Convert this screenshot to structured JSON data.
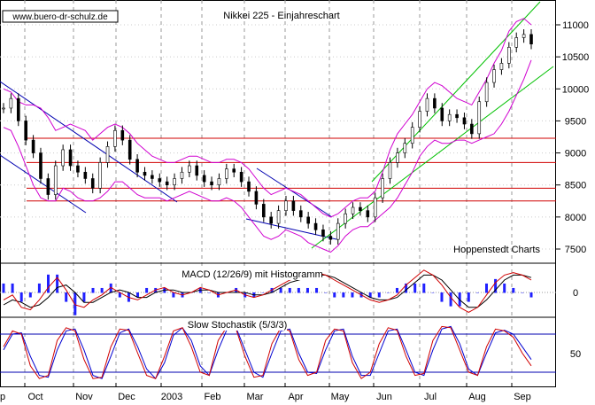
{
  "header": {
    "source": "www.buero-dr-schulz.de",
    "title": "Nikkei 225 - Einjahreschart"
  },
  "chart_data": [
    {
      "type": "candlestick",
      "title": "Nikkei 225 - Einjahreschart",
      "attribution": "Hoppenstedt Charts",
      "ylim": [
        7300,
        11500
      ],
      "yticks": [
        7500,
        8000,
        8500,
        9000,
        9500,
        10000,
        10500,
        11000
      ],
      "xticks": [
        "p",
        "Oct",
        "Nov",
        "Dec",
        "2003",
        "Feb",
        "Mar",
        "Apr",
        "May",
        "Jun",
        "Jul",
        "Aug",
        "Sep"
      ],
      "horizontal_levels": [
        8250,
        8450,
        8850,
        9230
      ],
      "close": [
        9700,
        9850,
        9500,
        9200,
        9000,
        8600,
        8350,
        8800,
        9050,
        8800,
        8700,
        8600,
        8450,
        8850,
        9100,
        9350,
        9200,
        8900,
        8700,
        8650,
        8600,
        8550,
        8500,
        8600,
        8700,
        8800,
        8650,
        8550,
        8500,
        8600,
        8750,
        8700,
        8550,
        8400,
        8200,
        8000,
        7900,
        8100,
        8250,
        8100,
        8000,
        7900,
        7800,
        7700,
        7650,
        7900,
        8050,
        8150,
        8100,
        8000,
        8300,
        8600,
        8850,
        9000,
        9150,
        9400,
        9650,
        9850,
        9700,
        9500,
        9600,
        9550,
        9450,
        9300,
        9800,
        10100,
        10300,
        10400,
        10650,
        10800,
        10850,
        10700
      ],
      "upper_band": [
        10000,
        9950,
        9800,
        9750,
        9750,
        9700,
        9550,
        9350,
        9400,
        9450,
        9400,
        9350,
        9200,
        9300,
        9400,
        9450,
        9400,
        9300,
        9150,
        9050,
        8950,
        8900,
        8850,
        8850,
        8900,
        8950,
        8950,
        8900,
        8850,
        8850,
        8900,
        8900,
        8850,
        8750,
        8600,
        8450,
        8350,
        8400,
        8450,
        8400,
        8350,
        8250,
        8150,
        8050,
        8000,
        8050,
        8150,
        8250,
        8300,
        8300,
        8400,
        8700,
        9050,
        9300,
        9450,
        9600,
        9800,
        10000,
        10100,
        10050,
        9950,
        9850,
        9800,
        9750,
        9950,
        10150,
        10400,
        10600,
        10900,
        11050,
        11100,
        11000
      ],
      "lower_band": [
        9400,
        9350,
        9100,
        8800,
        8500,
        8300,
        8250,
        8250,
        8450,
        8400,
        8300,
        8250,
        8250,
        8300,
        8400,
        8550,
        8550,
        8450,
        8350,
        8300,
        8300,
        8300,
        8250,
        8300,
        8350,
        8400,
        8350,
        8300,
        8250,
        8250,
        8300,
        8250,
        8150,
        8000,
        7850,
        7700,
        7650,
        7700,
        7800,
        7750,
        7700,
        7600,
        7550,
        7500,
        7450,
        7550,
        7700,
        7800,
        7850,
        7850,
        7950,
        8050,
        8150,
        8300,
        8500,
        8700,
        8950,
        9100,
        9200,
        9150,
        9150,
        9200,
        9200,
        9150,
        9200,
        9250,
        9300,
        9450,
        9650,
        9900,
        10150,
        10450
      ]
    },
    {
      "type": "line",
      "title": "MACD (12/26/9) mit Histogramm",
      "yticks": [
        0
      ],
      "series": [
        {
          "values": [
            -0.3,
            -0.1,
            -0.6,
            -0.7,
            -0.3,
            0.2,
            0.6,
            0.1,
            -0.5,
            -0.6,
            -0.3,
            -0.1,
            0.2,
            0.0,
            -0.2,
            -0.3,
            -0.1,
            0.1,
            0.2,
            0.0,
            -0.1,
            0.0,
            0.2,
            0.1,
            -0.1,
            0.0,
            0.1,
            -0.1,
            -0.2,
            -0.1,
            0.1,
            0.3,
            0.5,
            0.6,
            0.7,
            0.8,
            0.7,
            0.5,
            0.3,
            0.1,
            -0.1,
            -0.3,
            -0.4,
            -0.3,
            -0.1,
            0.3,
            0.6,
            0.9,
            0.7,
            0.3,
            -0.2,
            -0.6,
            -0.8,
            -0.6,
            -0.1,
            0.4,
            0.7,
            0.8,
            0.7,
            0.5
          ]
        },
        {
          "values": [
            -0.5,
            -0.3,
            -0.4,
            -0.6,
            -0.5,
            -0.2,
            0.2,
            0.3,
            0.0,
            -0.4,
            -0.4,
            -0.2,
            0.0,
            0.1,
            0.0,
            -0.2,
            -0.2,
            0.0,
            0.1,
            0.1,
            0.0,
            0.0,
            0.1,
            0.1,
            0.0,
            0.0,
            0.0,
            0.0,
            -0.1,
            -0.1,
            0.0,
            0.2,
            0.4,
            0.5,
            0.6,
            0.7,
            0.7,
            0.6,
            0.4,
            0.2,
            0.0,
            -0.2,
            -0.3,
            -0.3,
            -0.2,
            0.1,
            0.4,
            0.7,
            0.7,
            0.5,
            0.1,
            -0.3,
            -0.6,
            -0.6,
            -0.3,
            0.1,
            0.5,
            0.7,
            0.7,
            0.6
          ]
        }
      ]
    },
    {
      "type": "line",
      "title": "Slow Stochastik (5/3/3)",
      "yticks": [
        50
      ],
      "levels": [
        20,
        80
      ],
      "ylim": [
        0,
        100
      ],
      "series": [
        {
          "values": [
            60,
            85,
            80,
            30,
            10,
            15,
            70,
            90,
            85,
            40,
            10,
            12,
            60,
            88,
            86,
            50,
            15,
            10,
            45,
            85,
            90,
            60,
            20,
            15,
            70,
            92,
            88,
            45,
            12,
            15,
            65,
            90,
            85,
            40,
            15,
            20,
            70,
            88,
            85,
            35,
            10,
            20,
            65,
            90,
            86,
            45,
            15,
            18,
            70,
            92,
            90,
            55,
            20,
            15,
            60,
            88,
            85,
            75,
            50,
            30
          ]
        },
        {
          "values": [
            55,
            80,
            82,
            45,
            15,
            12,
            55,
            85,
            88,
            55,
            15,
            10,
            45,
            82,
            88,
            60,
            25,
            10,
            35,
            78,
            90,
            70,
            30,
            15,
            55,
            88,
            90,
            55,
            20,
            12,
            50,
            85,
            88,
            50,
            20,
            18,
            55,
            85,
            88,
            45,
            15,
            15,
            50,
            85,
            88,
            55,
            20,
            15,
            55,
            88,
            92,
            65,
            25,
            15,
            50,
            82,
            86,
            80,
            60,
            40
          ]
        }
      ]
    }
  ]
}
